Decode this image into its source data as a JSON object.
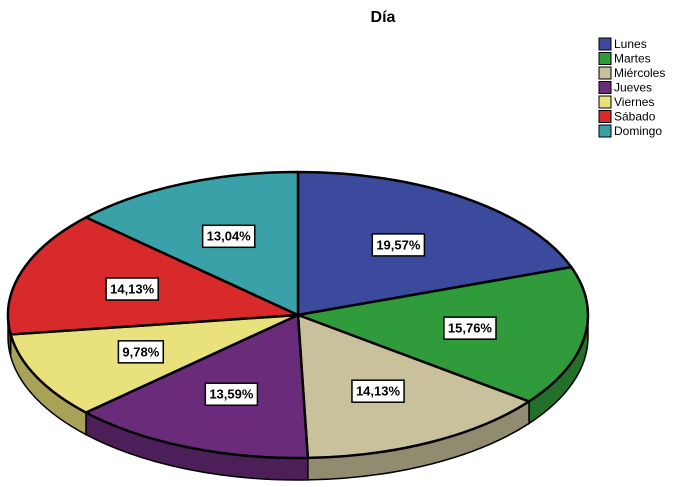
{
  "chart_data": {
    "type": "pie",
    "title": "Día",
    "categories": [
      "Lunes",
      "Martes",
      "Miércoles",
      "Jueves",
      "Viernes",
      "Sábado",
      "Domingo"
    ],
    "values": [
      19.57,
      15.76,
      14.13,
      13.59,
      9.78,
      14.13,
      13.04
    ],
    "value_labels": [
      "19,57%",
      "15,76%",
      "14,13%",
      "13,59%",
      "9,78%",
      "14,13%",
      "13,04%"
    ],
    "colors": [
      "#3b4a9c",
      "#2f9b3b",
      "#c9c19c",
      "#6b2b7b",
      "#e9e17b",
      "#d92a2b",
      "#3ba1a9"
    ],
    "legend": "top-right"
  }
}
